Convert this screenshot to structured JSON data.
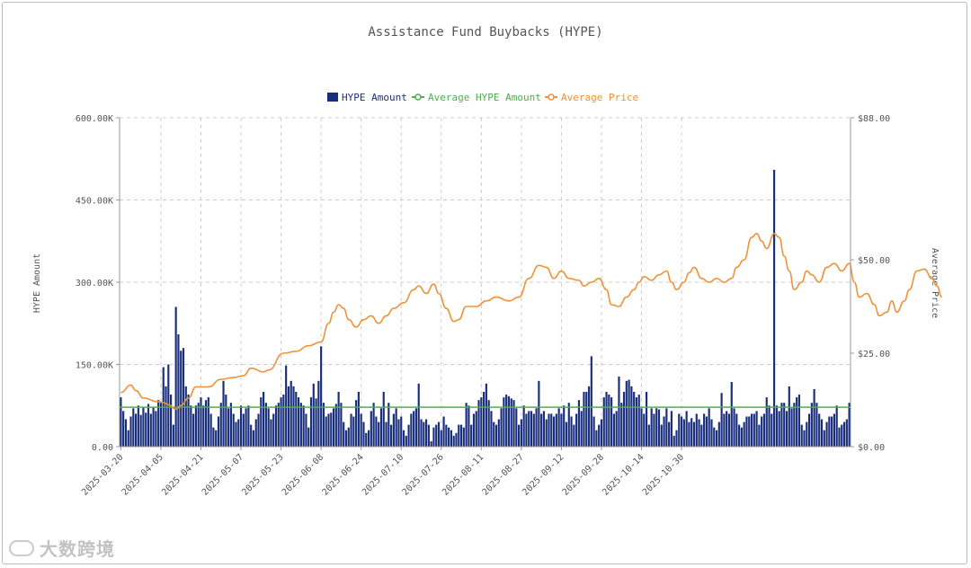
{
  "colors": {
    "bar": "#1a2f7c",
    "avg_amount": "#4caf50",
    "avg_price": "#f0923a",
    "grid": "#cccccc",
    "axis_text": "#555555"
  },
  "chart_data": {
    "type": "bar+line",
    "title": "Assistance Fund Buybacks (HYPE)",
    "ylabel": "HYPE Amount",
    "y2label": "Average Price",
    "ylim": [
      0,
      600000
    ],
    "y2lim": [
      0,
      88
    ],
    "y_ticks": [
      "0.00",
      "150.00K",
      "300.00K",
      "450.00K",
      "600.00K"
    ],
    "y2_ticks": [
      "$0.00",
      "$25.00",
      "$50.00",
      "$88.00"
    ],
    "y2_tick_values": [
      0,
      25,
      50,
      88
    ],
    "x_ticks": [
      "2025-03-20",
      "2025-04-05",
      "2025-04-21",
      "2025-05-07",
      "2025-05-23",
      "2025-06-08",
      "2025-06-24",
      "2025-07-10",
      "2025-07-26",
      "2025-08-11",
      "2025-08-27",
      "2025-09-12",
      "2025-09-28",
      "2025-10-14",
      "2025-10-30"
    ],
    "legend": [
      {
        "name": "HYPE Amount",
        "kind": "bar"
      },
      {
        "name": "Average HYPE Amount",
        "kind": "line"
      },
      {
        "name": "Average Price",
        "kind": "line"
      }
    ],
    "start_date": "2025-03-20",
    "average_amount": 72000,
    "amount": [
      90000,
      65000,
      50000,
      30000,
      55000,
      70000,
      60000,
      75000,
      58000,
      72000,
      62000,
      78000,
      60000,
      72000,
      65000,
      85000,
      80000,
      145000,
      110000,
      150000,
      95000,
      40000,
      255000,
      205000,
      175000,
      180000,
      110000,
      95000,
      75000,
      60000,
      75000,
      80000,
      90000,
      75000,
      85000,
      90000,
      60000,
      35000,
      30000,
      55000,
      80000,
      120000,
      95000,
      70000,
      80000,
      60000,
      45000,
      50000,
      75000,
      60000,
      70000,
      75000,
      40000,
      30000,
      50000,
      60000,
      90000,
      100000,
      80000,
      70000,
      50000,
      60000,
      75000,
      80000,
      90000,
      95000,
      148000,
      110000,
      120000,
      110000,
      100000,
      90000,
      80000,
      75000,
      60000,
      35000,
      90000,
      115000,
      88000,
      120000,
      183000,
      80000,
      55000,
      60000,
      62000,
      70000,
      78000,
      100000,
      80000,
      45000,
      30000,
      35000,
      60000,
      55000,
      85000,
      100000,
      60000,
      45000,
      25000,
      30000,
      65000,
      80000,
      55000,
      45000,
      70000,
      100000,
      45000,
      80000,
      40000,
      60000,
      70000,
      50000,
      55000,
      30000,
      20000,
      40000,
      60000,
      65000,
      70000,
      115000,
      50000,
      45000,
      50000,
      40000,
      10000,
      35000,
      40000,
      45000,
      30000,
      55000,
      40000,
      35000,
      30000,
      20000,
      25000,
      40000,
      40000,
      35000,
      80000,
      75000,
      40000,
      60000,
      65000,
      85000,
      90000,
      100000,
      115000,
      85000,
      65000,
      45000,
      40000,
      50000,
      70000,
      90000,
      95000,
      92000,
      88000,
      85000,
      70000,
      40000,
      50000,
      75000,
      60000,
      65000,
      65000,
      60000,
      70000,
      120000,
      60000,
      65000,
      50000,
      60000,
      60000,
      55000,
      60000,
      70000,
      60000,
      75000,
      45000,
      80000,
      55000,
      40000,
      60000,
      85000,
      65000,
      100000,
      100000,
      110000,
      165000,
      55000,
      30000,
      40000,
      50000,
      90000,
      100000,
      95000,
      90000,
      60000,
      65000,
      128000,
      80000,
      100000,
      120000,
      122000,
      110000,
      100000,
      90000,
      95000,
      70000,
      60000,
      100000,
      40000,
      70000,
      60000,
      70000,
      68000,
      40000,
      55000,
      70000,
      45000,
      65000,
      20000,
      30000,
      60000,
      55000,
      50000,
      65000,
      45000,
      52000,
      45000,
      60000,
      50000,
      40000,
      60000,
      55000,
      70000,
      50000,
      35000,
      30000,
      45000,
      98000,
      60000,
      65000,
      60000,
      118000,
      70000,
      60000,
      40000,
      35000,
      45000,
      55000,
      55000,
      60000,
      60000,
      65000,
      40000,
      55000,
      60000,
      90000,
      75000,
      60000,
      505000,
      75000,
      65000,
      80000,
      80000,
      65000,
      110000,
      70000,
      80000,
      90000,
      95000,
      40000,
      30000,
      45000,
      60000,
      80000,
      105000,
      80000,
      60000,
      50000,
      30000,
      45000,
      55000,
      55000,
      60000,
      75000,
      35000,
      40000,
      45000,
      50000,
      80000
    ],
    "price_points": [
      [
        0,
        14.5
      ],
      [
        4,
        16.5
      ],
      [
        6,
        15
      ],
      [
        9,
        13
      ],
      [
        15,
        12
      ],
      [
        17,
        11.8
      ],
      [
        19,
        11.2
      ],
      [
        22,
        10
      ],
      [
        24,
        11
      ],
      [
        27,
        13
      ],
      [
        30,
        16
      ],
      [
        35,
        16
      ],
      [
        40,
        18
      ],
      [
        45,
        18.5
      ],
      [
        49,
        19
      ],
      [
        52,
        21
      ],
      [
        57,
        20
      ],
      [
        59,
        20.5
      ],
      [
        65,
        25
      ],
      [
        70,
        25.5
      ],
      [
        75,
        27
      ],
      [
        80,
        28
      ],
      [
        83,
        33
      ],
      [
        85,
        36
      ],
      [
        87,
        38
      ],
      [
        89,
        37
      ],
      [
        91,
        34
      ],
      [
        94,
        32
      ],
      [
        97,
        34
      ],
      [
        100,
        35
      ],
      [
        103,
        33
      ],
      [
        106,
        35
      ],
      [
        109,
        37
      ],
      [
        113,
        38.5
      ],
      [
        117,
        42
      ],
      [
        119,
        43
      ],
      [
        122,
        41
      ],
      [
        125,
        43.5
      ],
      [
        127,
        41
      ],
      [
        130,
        37
      ],
      [
        133,
        33.5
      ],
      [
        135,
        34
      ],
      [
        138,
        37.5
      ],
      [
        142,
        37.5
      ],
      [
        146,
        39
      ],
      [
        150,
        40
      ],
      [
        155,
        39
      ],
      [
        159,
        40
      ],
      [
        163,
        45
      ],
      [
        167,
        48.5
      ],
      [
        170,
        48
      ],
      [
        173,
        45
      ],
      [
        176,
        47
      ],
      [
        179,
        45
      ],
      [
        183,
        44.5
      ],
      [
        185,
        43
      ],
      [
        188,
        44
      ],
      [
        191,
        45
      ],
      [
        194,
        42
      ],
      [
        196,
        38
      ],
      [
        199,
        37.5
      ],
      [
        202,
        40
      ],
      [
        205,
        42
      ],
      [
        207,
        44
      ],
      [
        209,
        45.5
      ],
      [
        212,
        44.5
      ],
      [
        215,
        46
      ],
      [
        218,
        47
      ],
      [
        220,
        44
      ],
      [
        222,
        42
      ],
      [
        225,
        44
      ],
      [
        227,
        46.5
      ],
      [
        229,
        48
      ],
      [
        232,
        45
      ],
      [
        235,
        44
      ],
      [
        238,
        45
      ],
      [
        241,
        44
      ],
      [
        244,
        45
      ],
      [
        246,
        48
      ],
      [
        249,
        50
      ],
      [
        252,
        56
      ],
      [
        254,
        57
      ],
      [
        256,
        55
      ],
      [
        258,
        53
      ],
      [
        261,
        57
      ],
      [
        263,
        56
      ],
      [
        265,
        51
      ],
      [
        267,
        47
      ],
      [
        269,
        42
      ],
      [
        272,
        44
      ],
      [
        274,
        47
      ],
      [
        276,
        46
      ],
      [
        279,
        44
      ],
      [
        282,
        48
      ],
      [
        285,
        49
      ],
      [
        288,
        47
      ],
      [
        291,
        49
      ],
      [
        293,
        44
      ],
      [
        295,
        40
      ],
      [
        298,
        41
      ],
      [
        301,
        38
      ],
      [
        303,
        35
      ],
      [
        306,
        36
      ],
      [
        308,
        39
      ],
      [
        310,
        36
      ],
      [
        313,
        39
      ],
      [
        315,
        42
      ],
      [
        318,
        47
      ],
      [
        321,
        47.5
      ],
      [
        324,
        45
      ],
      [
        326,
        43
      ],
      [
        328,
        40
      ]
    ]
  },
  "watermark": "大数跨境"
}
